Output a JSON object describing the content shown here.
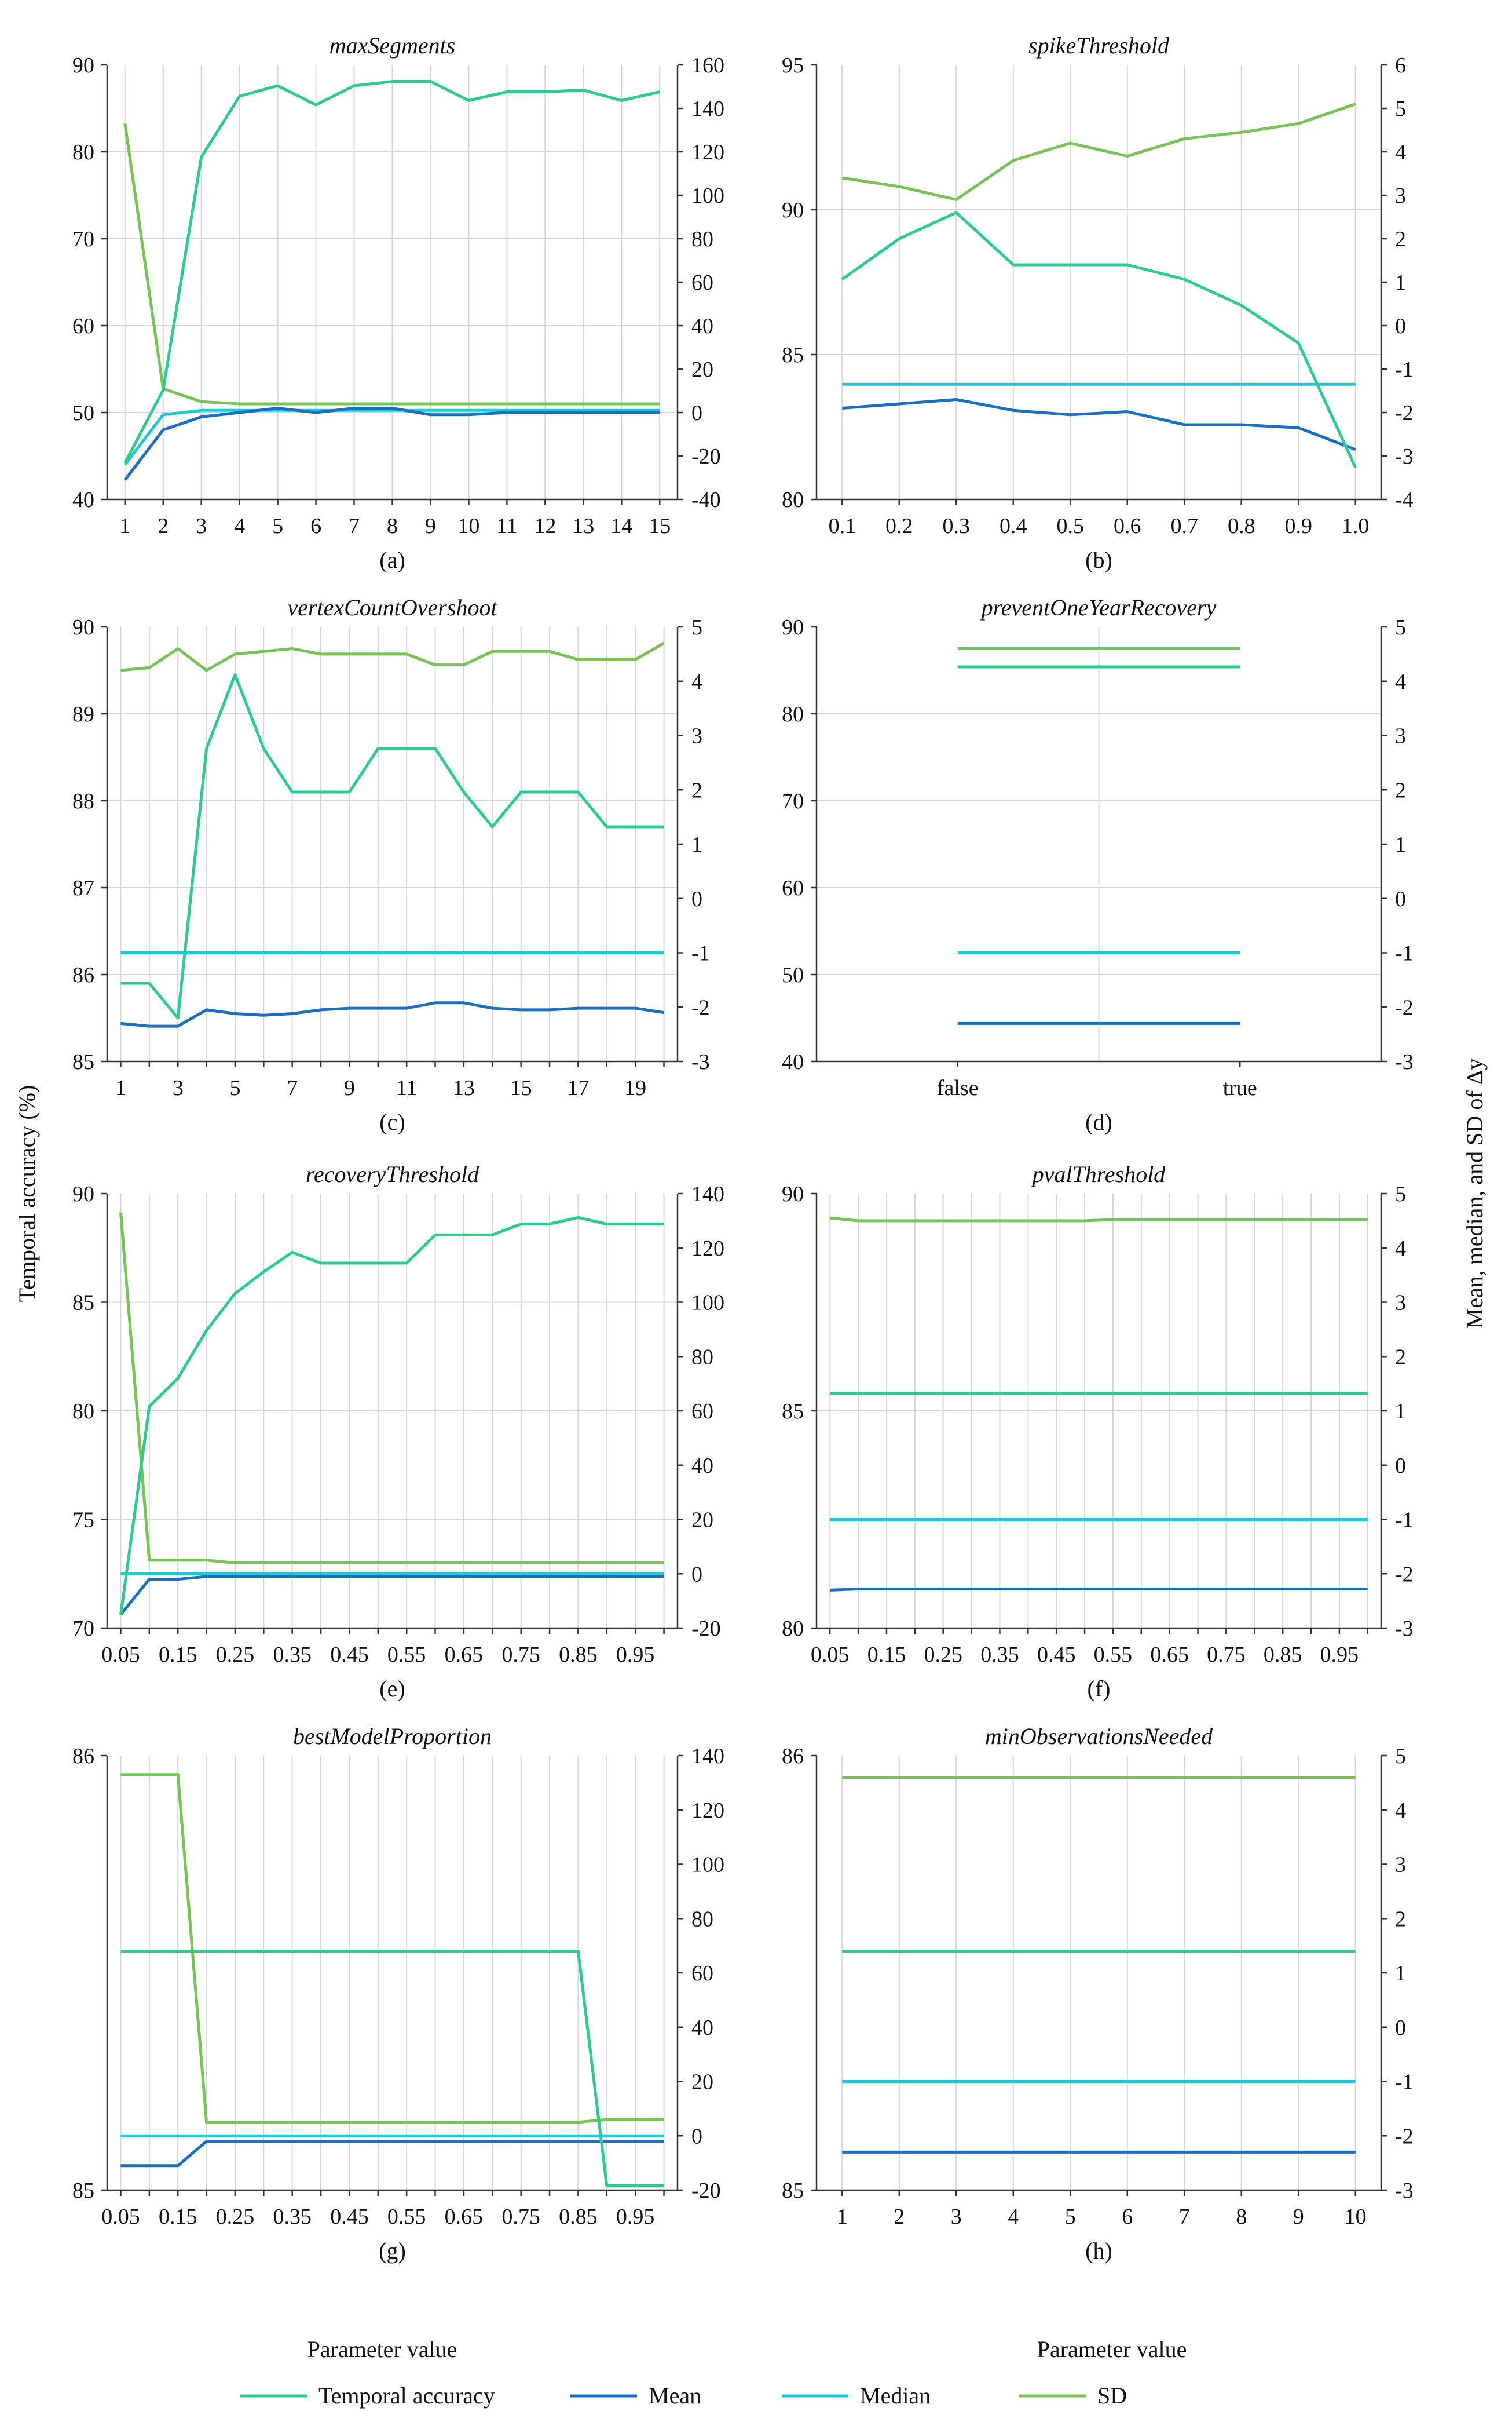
{
  "colors": {
    "acc": "#2ecc8c",
    "mean": "#1a6fc4",
    "median": "#1ec8d8",
    "sd": "#78c256",
    "grid": "#d6d6d6"
  },
  "ylabel_left": "Temporal accuracy (%)",
  "ylabel_right": "Mean, median, and SD of Δy",
  "xlabel_left": "Parameter value",
  "xlabel_right": "Parameter value",
  "legend": [
    {
      "key": "acc",
      "label": "Temporal accuracy"
    },
    {
      "key": "mean",
      "label": "Mean"
    },
    {
      "key": "median",
      "label": "Median"
    },
    {
      "key": "sd",
      "label": "SD"
    }
  ],
  "chart_data": [
    {
      "type": "line",
      "title": "maxSegments",
      "letter": "(a)",
      "x_ticks": [
        "1",
        "2",
        "3",
        "4",
        "5",
        "6",
        "7",
        "8",
        "9",
        "10",
        "11",
        "12",
        "13",
        "14",
        "15"
      ],
      "yleft": {
        "min": 40,
        "max": 90,
        "ticks": [
          40,
          50,
          60,
          70,
          80,
          90
        ]
      },
      "yright": {
        "min": -40,
        "max": 160,
        "ticks": [
          -40,
          -20,
          0,
          20,
          40,
          60,
          80,
          100,
          120,
          140,
          160
        ]
      },
      "series": [
        {
          "name": "Temporal accuracy",
          "key": "acc",
          "axis": "left",
          "values": [
            44.2,
            52.6,
            79.4,
            86.4,
            87.6,
            85.4,
            87.6,
            88.1,
            88.1,
            85.9,
            86.9,
            86.9,
            87.1,
            85.9,
            86.9
          ]
        },
        {
          "name": "Mean",
          "key": "mean",
          "axis": "right",
          "values": [
            -31,
            -8,
            -2,
            0,
            2,
            0,
            2,
            2,
            -1,
            -1,
            0,
            0,
            0,
            0,
            0
          ]
        },
        {
          "name": "Median",
          "key": "median",
          "axis": "right",
          "values": [
            -24,
            -1,
            1,
            1,
            1,
            1,
            1,
            1,
            1,
            1,
            1,
            1,
            1,
            1,
            1
          ]
        },
        {
          "name": "SD",
          "key": "sd",
          "axis": "right",
          "values": [
            133,
            11,
            5,
            4,
            4,
            4,
            4,
            4,
            4,
            4,
            4,
            4,
            4,
            4,
            4
          ]
        }
      ]
    },
    {
      "type": "line",
      "title": "spikeThreshold",
      "letter": "(b)",
      "x_ticks": [
        "0.1",
        "0.2",
        "0.3",
        "0.4",
        "0.5",
        "0.6",
        "0.7",
        "0.8",
        "0.9",
        "1.0"
      ],
      "yleft": {
        "min": 80,
        "max": 95,
        "ticks": [
          80,
          85,
          90,
          95
        ]
      },
      "yright": {
        "min": -4,
        "max": 6,
        "ticks": [
          -4,
          -3,
          -2,
          -1,
          0,
          1,
          2,
          3,
          4,
          5,
          6
        ]
      },
      "series": [
        {
          "name": "Temporal accuracy",
          "key": "acc",
          "axis": "left",
          "values": [
            87.6,
            89.0,
            89.9,
            88.1,
            88.1,
            88.1,
            87.6,
            86.7,
            85.4,
            81.1
          ]
        },
        {
          "name": "Mean",
          "key": "mean",
          "axis": "right",
          "values": [
            -1.9,
            -1.8,
            -1.7,
            -1.95,
            -2.05,
            -1.98,
            -2.28,
            -2.28,
            -2.35,
            -2.85
          ]
        },
        {
          "name": "Median",
          "key": "median",
          "axis": "right",
          "values": [
            -1.35,
            -1.35,
            -1.35,
            -1.35,
            -1.35,
            -1.35,
            -1.35,
            -1.35,
            -1.35,
            -1.35
          ]
        },
        {
          "name": "SD",
          "key": "sd",
          "axis": "right",
          "values": [
            3.4,
            3.2,
            2.9,
            3.8,
            4.2,
            3.9,
            4.3,
            4.45,
            4.65,
            5.1
          ]
        }
      ]
    },
    {
      "type": "line",
      "title": "vertexCountOvershoot",
      "letter": "(c)",
      "x_ticks": [
        "1",
        "2",
        "3",
        "4",
        "5",
        "6",
        "7",
        "8",
        "9",
        "10",
        "11",
        "12",
        "13",
        "14",
        "15",
        "16",
        "17",
        "18",
        "19",
        "20"
      ],
      "x_tick_labels": [
        "1",
        "",
        "3",
        "",
        "5",
        "",
        "7",
        "",
        "9",
        "",
        "11",
        "",
        "13",
        "",
        "15",
        "",
        "17",
        "",
        "19",
        ""
      ],
      "yleft": {
        "min": 85,
        "max": 90,
        "ticks": [
          85,
          86,
          87,
          88,
          89,
          90
        ]
      },
      "yright": {
        "min": -3,
        "max": 5,
        "ticks": [
          -3,
          -2,
          -1,
          0,
          1,
          2,
          3,
          4,
          5
        ]
      },
      "series": [
        {
          "name": "Temporal accuracy",
          "key": "acc",
          "axis": "left",
          "values": [
            85.9,
            85.9,
            85.5,
            88.6,
            89.45,
            88.6,
            88.1,
            88.1,
            88.1,
            88.6,
            88.6,
            88.6,
            88.1,
            87.7,
            88.1,
            88.1,
            88.1,
            87.7,
            87.7,
            87.7
          ]
        },
        {
          "name": "Mean",
          "key": "mean",
          "axis": "right",
          "values": [
            -2.3,
            -2.35,
            -2.35,
            -2.05,
            -2.12,
            -2.15,
            -2.12,
            -2.05,
            -2.02,
            -2.02,
            -2.02,
            -1.92,
            -1.92,
            -2.02,
            -2.05,
            -2.05,
            -2.02,
            -2.02,
            -2.02,
            -2.1
          ]
        },
        {
          "name": "Median",
          "key": "median",
          "axis": "right",
          "values": [
            -1,
            -1,
            -1,
            -1,
            -1,
            -1,
            -1,
            -1,
            -1,
            -1,
            -1,
            -1,
            -1,
            -1,
            -1,
            -1,
            -1,
            -1,
            -1,
            -1
          ]
        },
        {
          "name": "SD",
          "key": "sd",
          "axis": "right",
          "values": [
            4.2,
            4.25,
            4.6,
            4.2,
            4.5,
            4.55,
            4.6,
            4.5,
            4.5,
            4.5,
            4.5,
            4.3,
            4.3,
            4.55,
            4.55,
            4.55,
            4.4,
            4.4,
            4.4,
            4.7
          ]
        }
      ]
    },
    {
      "type": "line",
      "title": "preventOneYearRecovery",
      "letter": "(d)",
      "x_ticks": [
        "false",
        "true"
      ],
      "yleft": {
        "min": 40,
        "max": 90,
        "ticks": [
          40,
          50,
          60,
          70,
          80,
          90
        ]
      },
      "yright": {
        "min": -3,
        "max": 5,
        "ticks": [
          -3,
          -2,
          -1,
          0,
          1,
          2,
          3,
          4,
          5
        ]
      },
      "series": [
        {
          "name": "Temporal accuracy",
          "key": "acc",
          "axis": "left",
          "values": [
            85.4,
            85.4
          ]
        },
        {
          "name": "Mean",
          "key": "mean",
          "axis": "right",
          "values": [
            -2.3,
            -2.3
          ]
        },
        {
          "name": "Median",
          "key": "median",
          "axis": "right",
          "values": [
            -1,
            -1
          ]
        },
        {
          "name": "SD",
          "key": "sd",
          "axis": "right",
          "values": [
            4.6,
            4.6
          ]
        }
      ]
    },
    {
      "type": "line",
      "title": "recoveryThreshold",
      "letter": "(e)",
      "x_ticks": [
        "0.05",
        "0.1",
        "0.15",
        "0.2",
        "0.25",
        "0.3",
        "0.35",
        "0.4",
        "0.45",
        "0.5",
        "0.55",
        "0.6",
        "0.65",
        "0.7",
        "0.75",
        "0.8",
        "0.85",
        "0.9",
        "0.95",
        "1.0"
      ],
      "x_tick_labels": [
        "0.05",
        "",
        "0.15",
        "",
        "0.25",
        "",
        "0.35",
        "",
        "0.45",
        "",
        "0.55",
        "",
        "0.65",
        "",
        "0.75",
        "",
        "0.85",
        "",
        "0.95",
        ""
      ],
      "yleft": {
        "min": 70,
        "max": 90,
        "ticks": [
          70,
          75,
          80,
          85,
          90
        ]
      },
      "yright": {
        "min": -20,
        "max": 140,
        "ticks": [
          -20,
          0,
          20,
          40,
          60,
          80,
          100,
          120,
          140
        ]
      },
      "series": [
        {
          "name": "Temporal accuracy",
          "key": "acc",
          "axis": "left",
          "values": [
            70.6,
            80.2,
            81.5,
            83.7,
            85.4,
            86.4,
            87.3,
            86.8,
            86.8,
            86.8,
            86.8,
            88.1,
            88.1,
            88.1,
            88.6,
            88.6,
            88.9,
            88.6,
            88.6,
            88.6
          ]
        },
        {
          "name": "Mean",
          "key": "mean",
          "axis": "right",
          "values": [
            -15,
            -2,
            -2,
            -1,
            -1,
            -1,
            -1,
            -1,
            -1,
            -1,
            -1,
            -1,
            -1,
            -1,
            -1,
            -1,
            -1,
            -1,
            -1,
            -1
          ]
        },
        {
          "name": "Median",
          "key": "median",
          "axis": "right",
          "values": [
            0,
            0,
            0,
            0,
            0,
            0,
            0,
            0,
            0,
            0,
            0,
            0,
            0,
            0,
            0,
            0,
            0,
            0,
            0,
            0
          ]
        },
        {
          "name": "SD",
          "key": "sd",
          "axis": "right",
          "values": [
            133,
            5,
            5,
            5,
            4,
            4,
            4,
            4,
            4,
            4,
            4,
            4,
            4,
            4,
            4,
            4,
            4,
            4,
            4,
            4
          ]
        }
      ]
    },
    {
      "type": "line",
      "title": "pvalThreshold",
      "letter": "(f)",
      "x_ticks": [
        "0.05",
        "0.1",
        "0.15",
        "0.2",
        "0.25",
        "0.3",
        "0.35",
        "0.4",
        "0.45",
        "0.5",
        "0.55",
        "0.6",
        "0.65",
        "0.7",
        "0.75",
        "0.8",
        "0.85",
        "0.9",
        "0.95",
        "1.0"
      ],
      "x_tick_labels": [
        "0.05",
        "",
        "0.15",
        "",
        "0.25",
        "",
        "0.35",
        "",
        "0.45",
        "",
        "0.55",
        "",
        "0.65",
        "",
        "0.75",
        "",
        "0.85",
        "",
        "0.95",
        ""
      ],
      "yleft": {
        "min": 80,
        "max": 90,
        "ticks": [
          80,
          85,
          90
        ]
      },
      "yright": {
        "min": -3,
        "max": 5,
        "ticks": [
          -3,
          -2,
          -1,
          0,
          1,
          2,
          3,
          4,
          5
        ]
      },
      "series": [
        {
          "name": "Temporal accuracy",
          "key": "acc",
          "axis": "left",
          "values": [
            85.4,
            85.4,
            85.4,
            85.4,
            85.4,
            85.4,
            85.4,
            85.4,
            85.4,
            85.4,
            85.4,
            85.4,
            85.4,
            85.4,
            85.4,
            85.4,
            85.4,
            85.4,
            85.4,
            85.4
          ]
        },
        {
          "name": "Mean",
          "key": "mean",
          "axis": "right",
          "values": [
            -2.3,
            -2.28,
            -2.28,
            -2.28,
            -2.28,
            -2.28,
            -2.28,
            -2.28,
            -2.28,
            -2.28,
            -2.28,
            -2.28,
            -2.28,
            -2.28,
            -2.28,
            -2.28,
            -2.28,
            -2.28,
            -2.28,
            -2.28
          ]
        },
        {
          "name": "Median",
          "key": "median",
          "axis": "right",
          "values": [
            -1,
            -1,
            -1,
            -1,
            -1,
            -1,
            -1,
            -1,
            -1,
            -1,
            -1,
            -1,
            -1,
            -1,
            -1,
            -1,
            -1,
            -1,
            -1,
            -1
          ]
        },
        {
          "name": "SD",
          "key": "sd",
          "axis": "right",
          "values": [
            4.55,
            4.5,
            4.5,
            4.5,
            4.5,
            4.5,
            4.5,
            4.5,
            4.5,
            4.5,
            4.52,
            4.52,
            4.52,
            4.52,
            4.52,
            4.52,
            4.52,
            4.52,
            4.52,
            4.52
          ]
        }
      ]
    },
    {
      "type": "line",
      "title": "bestModelProportion",
      "letter": "(g)",
      "x_ticks": [
        "0.05",
        "0.1",
        "0.15",
        "0.2",
        "0.25",
        "0.3",
        "0.35",
        "0.4",
        "0.45",
        "0.5",
        "0.55",
        "0.6",
        "0.65",
        "0.7",
        "0.75",
        "0.8",
        "0.85",
        "0.9",
        "0.95",
        "1.0"
      ],
      "x_tick_labels": [
        "0.05",
        "",
        "0.15",
        "",
        "0.25",
        "",
        "0.35",
        "",
        "0.45",
        "",
        "0.55",
        "",
        "0.65",
        "",
        "0.75",
        "",
        "0.85",
        "",
        "0.95",
        ""
      ],
      "yleft": {
        "min": 85,
        "max": 86,
        "ticks": [
          85,
          86
        ]
      },
      "yright": {
        "min": -20,
        "max": 140,
        "ticks": [
          -20,
          0,
          20,
          40,
          60,
          80,
          100,
          120,
          140
        ]
      },
      "series": [
        {
          "name": "Temporal accuracy",
          "key": "acc",
          "axis": "left",
          "values": [
            85.55,
            85.55,
            85.55,
            85.55,
            85.55,
            85.55,
            85.55,
            85.55,
            85.55,
            85.55,
            85.55,
            85.55,
            85.55,
            85.55,
            85.55,
            85.55,
            85.55,
            85.01,
            85.01,
            85.01
          ]
        },
        {
          "name": "Mean",
          "key": "mean",
          "axis": "right",
          "values": [
            -11,
            -11,
            -11,
            -2,
            -2,
            -2,
            -2,
            -2,
            -2,
            -2,
            -2,
            -2,
            -2,
            -2,
            -2,
            -2,
            -2,
            -2,
            -2,
            -2
          ]
        },
        {
          "name": "Median",
          "key": "median",
          "axis": "right",
          "values": [
            0,
            0,
            0,
            0,
            0,
            0,
            0,
            0,
            0,
            0,
            0,
            0,
            0,
            0,
            0,
            0,
            0,
            0,
            0,
            0
          ]
        },
        {
          "name": "SD",
          "key": "sd",
          "axis": "right",
          "values": [
            133,
            133,
            133,
            5,
            5,
            5,
            5,
            5,
            5,
            5,
            5,
            5,
            5,
            5,
            5,
            5,
            5,
            6,
            6,
            6
          ]
        }
      ]
    },
    {
      "type": "line",
      "title": "minObservationsNeeded",
      "letter": "(h)",
      "x_ticks": [
        "1",
        "2",
        "3",
        "4",
        "5",
        "6",
        "7",
        "8",
        "9",
        "10"
      ],
      "yleft": {
        "min": 85,
        "max": 86,
        "ticks": [
          85,
          86
        ]
      },
      "yright": {
        "min": -3,
        "max": 5,
        "ticks": [
          -3,
          -2,
          -1,
          0,
          1,
          2,
          3,
          4,
          5
        ]
      },
      "series": [
        {
          "name": "Temporal accuracy",
          "key": "acc",
          "axis": "left",
          "values": [
            85.55,
            85.55,
            85.55,
            85.55,
            85.55,
            85.55,
            85.55,
            85.55,
            85.55,
            85.55
          ]
        },
        {
          "name": "Mean",
          "key": "mean",
          "axis": "right",
          "values": [
            -2.3,
            -2.3,
            -2.3,
            -2.3,
            -2.3,
            -2.3,
            -2.3,
            -2.3,
            -2.3,
            -2.3
          ]
        },
        {
          "name": "Median",
          "key": "median",
          "axis": "right",
          "values": [
            -1,
            -1,
            -1,
            -1,
            -1,
            -1,
            -1,
            -1,
            -1,
            -1
          ]
        },
        {
          "name": "SD",
          "key": "sd",
          "axis": "right",
          "values": [
            4.6,
            4.6,
            4.6,
            4.6,
            4.6,
            4.6,
            4.6,
            4.6,
            4.6,
            4.6
          ]
        }
      ]
    }
  ]
}
